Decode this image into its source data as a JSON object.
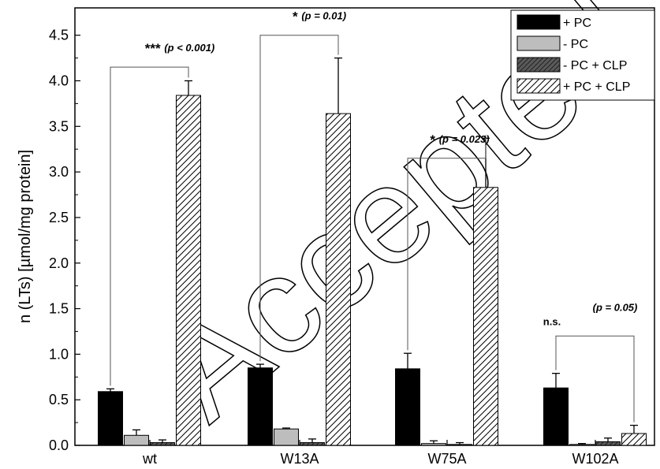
{
  "chart_data": {
    "type": "bar",
    "title": "",
    "xlabel": "",
    "ylabel": "n (LTs) [µmol/mg protein]",
    "ylim": [
      0,
      4.8
    ],
    "yticks": [
      "0.0",
      "0.5",
      "1.0",
      "1.5",
      "2.0",
      "2.5",
      "3.0",
      "3.5",
      "4.0",
      "4.5"
    ],
    "categories": [
      "wt",
      "W13A",
      "W75A",
      "W102A"
    ],
    "series": [
      {
        "name": "+ PC",
        "fill": "solid-black",
        "values": [
          0.59,
          0.85,
          0.84,
          0.63
        ],
        "errors": [
          0.03,
          0.04,
          0.17,
          0.16
        ]
      },
      {
        "name": "- PC",
        "fill": "solid-gray",
        "values": [
          0.11,
          0.18,
          0.02,
          0.01
        ],
        "errors": [
          0.06,
          0.01,
          0.03,
          0.01
        ]
      },
      {
        "name": "- PC + CLP",
        "fill": "dark-gray-hatch",
        "values": [
          0.03,
          0.03,
          0.01,
          0.04
        ],
        "errors": [
          0.03,
          0.04,
          0.02,
          0.04
        ]
      },
      {
        "name": "+ PC + CLP",
        "fill": "white-hatch",
        "values": [
          3.84,
          3.64,
          2.83,
          0.13
        ],
        "errors": [
          0.16,
          0.61,
          0.54,
          0.09
        ]
      }
    ],
    "legend_position": "top-right",
    "annotations": [
      {
        "group": "wt",
        "stars": "***",
        "p": "(p < 0.001)"
      },
      {
        "group": "W13A",
        "stars": "*",
        "p": "(p = 0.01)"
      },
      {
        "group": "W75A",
        "stars": "*",
        "p": "(p = 0.023)"
      },
      {
        "group": "W102A",
        "stars": "n.s.",
        "p": "(p = 0.05)"
      }
    ]
  },
  "watermark": "Accepted",
  "colors": {
    "black_bar": "#000000",
    "gray_bar": "#bdbdbd",
    "dark_gray_bar": "#5a5a5a",
    "hatch_bar": "#ffffff",
    "axis": "#000000"
  }
}
